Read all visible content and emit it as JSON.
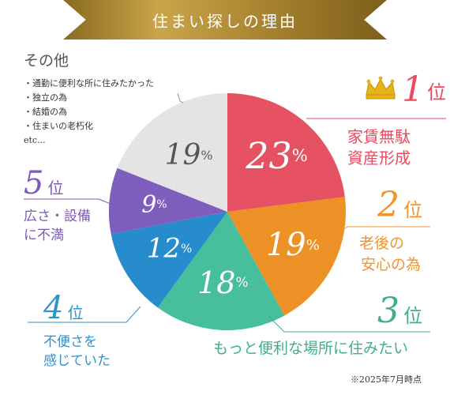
{
  "header": {
    "title": "住まい探しの理由"
  },
  "others": {
    "heading": "その他",
    "items": [
      "通勤に便利な所に住みたかった",
      "独立の為",
      "結婚の為",
      "住まいの老朽化",
      "etc..."
    ]
  },
  "rankings": [
    {
      "rank": "1",
      "unit": "位",
      "reason_lines": [
        "家賃無駄",
        "資産形成"
      ],
      "color": "#e84a5f"
    },
    {
      "rank": "2",
      "unit": "位",
      "reason_lines": [
        "老後の",
        "安心の為"
      ],
      "color": "#f0952b"
    },
    {
      "rank": "3",
      "unit": "位",
      "reason_lines": [
        "もっと便利な場所に住みたい"
      ],
      "color": "#3fae8c"
    },
    {
      "rank": "4",
      "unit": "位",
      "reason_lines": [
        "不便さを",
        "感じていた"
      ],
      "color": "#2b93cf"
    },
    {
      "rank": "5",
      "unit": "位",
      "reason_lines": [
        "広さ・設備",
        "に不満"
      ],
      "color": "#7b5bb3"
    }
  ],
  "footnote": "※2025年7月時点",
  "chart_data": {
    "type": "pie",
    "title": "住まい探しの理由",
    "slices": [
      {
        "label": "家賃無駄 資産形成",
        "value": 23,
        "color": "#ef5767"
      },
      {
        "label": "老後の 安心の為",
        "value": 19,
        "color": "#f7982a"
      },
      {
        "label": "もっと便利な場所に住みたい",
        "value": 18,
        "color": "#4cc7a4"
      },
      {
        "label": "不便さを感じていた",
        "value": 12,
        "color": "#2b93d6"
      },
      {
        "label": "広さ・設備に不満",
        "value": 9,
        "color": "#8463c4"
      },
      {
        "label": "その他",
        "value": 19,
        "color": "#eeedf0"
      }
    ],
    "value_suffix": "%"
  }
}
